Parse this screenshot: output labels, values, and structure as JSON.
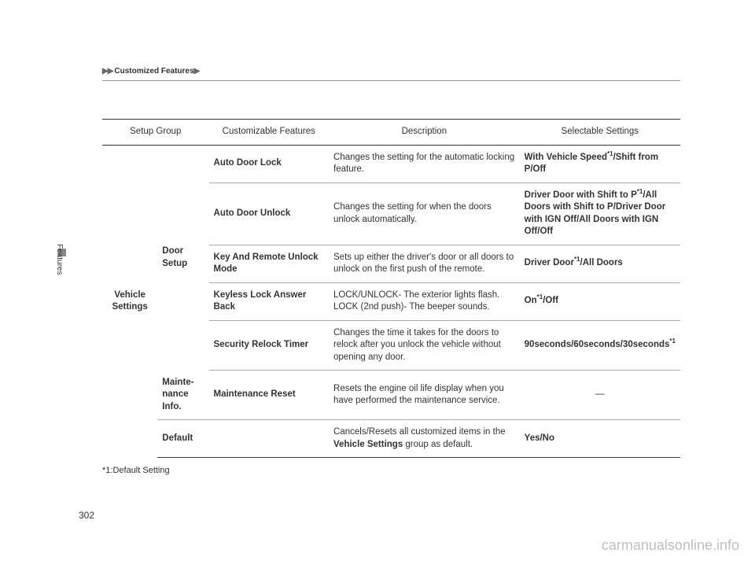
{
  "breadcrumb": "Customized Features",
  "side_tab": "Features",
  "page_number": "302",
  "watermark": "carmanualsonline.info",
  "footnote": "*1:Default Setting",
  "headers": {
    "setup_group": "Setup Group",
    "customizable": "Customizable Features",
    "description": "Description",
    "selectable": "Selectable Settings"
  },
  "group": "Vehicle Settings",
  "subgroups": {
    "door": "Door Setup",
    "maint": "Mainte-nance Info.",
    "default": "Default"
  },
  "rows": {
    "r1": {
      "feature": "Auto Door Lock",
      "desc": "Changes the setting for the automatic locking feature.",
      "sel_pre": "With Vehicle Speed",
      "sel_post": "/Shift from P/Off"
    },
    "r2": {
      "feature": "Auto Door Unlock",
      "desc": "Changes the setting for when the doors unlock automatically.",
      "sel_pre": "Driver Door with Shift to P",
      "sel_post": "/All Doors with Shift to P/Driver Door with IGN Off/All Doors with IGN Off/Off"
    },
    "r3": {
      "feature": "Key And Remote Unlock Mode",
      "desc": "Sets up either the driver's door or all doors to unlock on the first push of the remote.",
      "sel_pre": "Driver Door",
      "sel_post": "/All Doors"
    },
    "r4": {
      "feature": "Keyless Lock Answer Back",
      "desc": "LOCK/UNLOCK- The exterior lights flash.\nLOCK (2nd push)- The beeper sounds.",
      "sel_pre": "On",
      "sel_post": "/Off"
    },
    "r5": {
      "feature": "Security Relock Timer",
      "desc": "Changes the time it takes for the doors to relock after you unlock the vehicle without opening any door.",
      "sel_pre": "90seconds/60seconds/30seconds"
    },
    "r6": {
      "feature": "Maintenance Reset",
      "desc": "Resets the engine oil life display when you have performed the maintenance service.",
      "sel": "—"
    },
    "r7": {
      "desc_pre": "Cancels/Resets all customized items in the ",
      "desc_bold": "Vehicle Settings",
      "desc_post": " group as default.",
      "sel": "Yes/No"
    }
  }
}
